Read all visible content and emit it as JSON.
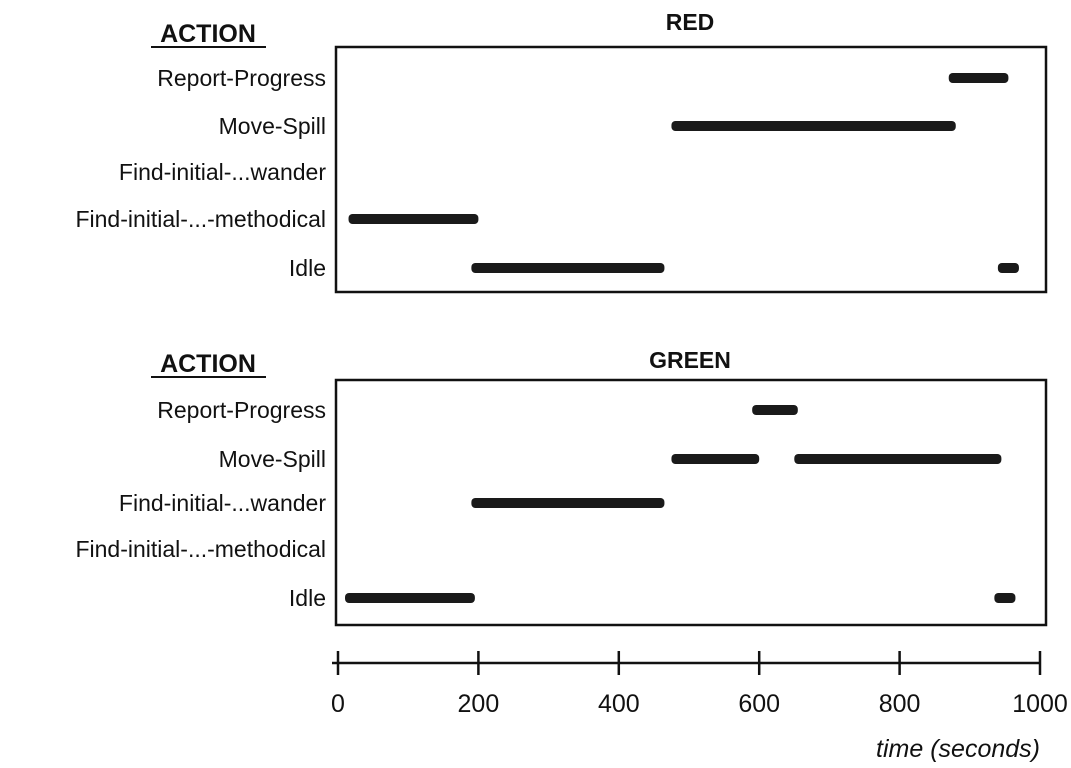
{
  "chart_data": {
    "type": "timeline",
    "xlabel": "time (seconds)",
    "xlim": [
      0,
      1000
    ],
    "xticks": [
      0,
      200,
      400,
      600,
      800,
      1000
    ],
    "panels": [
      {
        "title": "RED",
        "ylabel": "ACTION",
        "categories": [
          "Report-Progress",
          "Move-Spill",
          "Find-initial-...wander",
          "Find-initial-...-methodical",
          "Idle"
        ],
        "series": [
          {
            "category": "Report-Progress",
            "intervals": [
              [
                870,
                955
              ]
            ]
          },
          {
            "category": "Move-Spill",
            "intervals": [
              [
                475,
                880
              ]
            ]
          },
          {
            "category": "Find-initial-...wander",
            "intervals": []
          },
          {
            "category": "Find-initial-...-methodical",
            "intervals": [
              [
                15,
                200
              ]
            ]
          },
          {
            "category": "Idle",
            "intervals": [
              [
                190,
                465
              ],
              [
                940,
                970
              ]
            ]
          }
        ]
      },
      {
        "title": "GREEN",
        "ylabel": "ACTION",
        "categories": [
          "Report-Progress",
          "Move-Spill",
          "Find-initial-...wander",
          "Find-initial-...-methodical",
          "Idle"
        ],
        "series": [
          {
            "category": "Report-Progress",
            "intervals": [
              [
                590,
                655
              ]
            ]
          },
          {
            "category": "Move-Spill",
            "intervals": [
              [
                475,
                600
              ],
              [
                650,
                945
              ]
            ]
          },
          {
            "category": "Find-initial-...wander",
            "intervals": [
              [
                190,
                465
              ]
            ]
          },
          {
            "category": "Find-initial-...-methodical",
            "intervals": []
          },
          {
            "category": "Idle",
            "intervals": [
              [
                10,
                195
              ],
              [
                935,
                965
              ]
            ]
          }
        ]
      }
    ]
  }
}
